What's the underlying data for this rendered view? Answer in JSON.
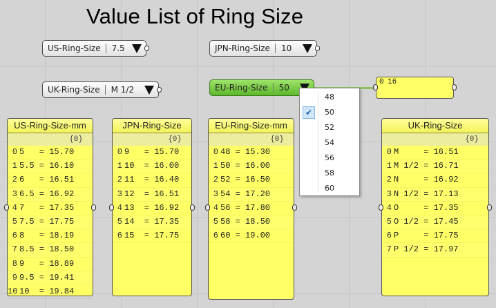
{
  "title": "Value List of Ring Size",
  "value_lists": {
    "us": {
      "name": "US-Ring-Size",
      "value": "7.5"
    },
    "jpn": {
      "name": "JPN-Ring-Size",
      "value": "10"
    },
    "uk": {
      "name": "UK-Ring-Size",
      "value": "M 1/2"
    },
    "eu": {
      "name": "EU-Ring-Size",
      "value": "50"
    }
  },
  "dropdown": {
    "options": [
      "48",
      "50",
      "52",
      "54",
      "56",
      "58",
      "60"
    ],
    "selected": "50"
  },
  "output_panel": {
    "index": "0",
    "value": "16"
  },
  "panels": {
    "us": {
      "title": "US-Ring-Size-mm",
      "path": "{0}",
      "rows": [
        {
          "i": "0",
          "t": "5   = 15.70"
        },
        {
          "i": "1",
          "t": "5.5 = 16.10"
        },
        {
          "i": "2",
          "t": "6   = 16.51"
        },
        {
          "i": "3",
          "t": "6.5 = 16.92"
        },
        {
          "i": "4",
          "t": "7   = 17.35"
        },
        {
          "i": "5",
          "t": "7.5 = 17.75"
        },
        {
          "i": "6",
          "t": "8   = 18.19"
        },
        {
          "i": "7",
          "t": "8.5 = 18.50"
        },
        {
          "i": "8",
          "t": "9   = 18.89"
        },
        {
          "i": "9",
          "t": "9.5 = 19.41"
        },
        {
          "i": "10",
          "t": "10  = 19.84"
        }
      ]
    },
    "jpn": {
      "title": "JPN-Ring-Size",
      "path": "{0}",
      "rows": [
        {
          "i": "0",
          "t": "9   = 15.70"
        },
        {
          "i": "1",
          "t": "10  = 16.00"
        },
        {
          "i": "2",
          "t": "11  = 16.40"
        },
        {
          "i": "3",
          "t": "12  = 16.51"
        },
        {
          "i": "4",
          "t": "13  = 16.92"
        },
        {
          "i": "5",
          "t": "14  = 17.35"
        },
        {
          "i": "6",
          "t": "15  = 17.75"
        }
      ]
    },
    "eu": {
      "title": "EU-Ring-Size-mm",
      "path": "{0}",
      "rows": [
        {
          "i": "0",
          "t": "48 = 15.30"
        },
        {
          "i": "1",
          "t": "50 = 16.00"
        },
        {
          "i": "2",
          "t": "52 = 16.50"
        },
        {
          "i": "3",
          "t": "54 = 17.20"
        },
        {
          "i": "4",
          "t": "56 = 17.80"
        },
        {
          "i": "5",
          "t": "58 = 18.50"
        },
        {
          "i": "6",
          "t": "60 = 19.00"
        }
      ]
    },
    "uk": {
      "title": "UK-Ring-Size",
      "path": "{0}",
      "rows": [
        {
          "i": "0",
          "t": "M     = 16.51"
        },
        {
          "i": "1",
          "t": "M 1/2 = 16.71"
        },
        {
          "i": "2",
          "t": "N     = 16.92"
        },
        {
          "i": "3",
          "t": "N 1/2 = 17.13"
        },
        {
          "i": "4",
          "t": "O     = 17.35"
        },
        {
          "i": "5",
          "t": "O 1/2 = 17.45"
        },
        {
          "i": "6",
          "t": "P     = 17.75"
        },
        {
          "i": "7",
          "t": "P 1/2 = 17.97"
        }
      ]
    }
  },
  "colors": {
    "panel_fill": "#ffff66",
    "value_list_active": "#6cc63a",
    "canvas": "#d4d4d4"
  }
}
